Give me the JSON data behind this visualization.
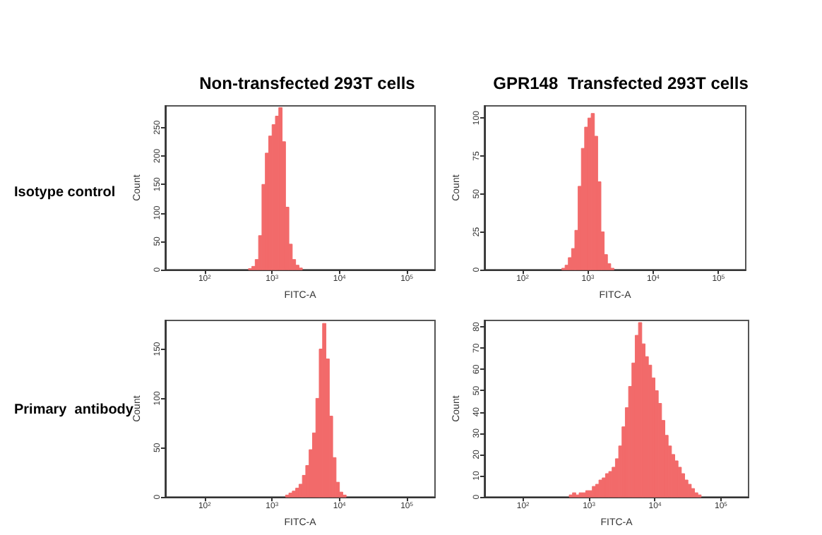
{
  "chart_data": [
    {
      "type": "histogram",
      "title": "Non-transfected 293T cells",
      "annotations": [
        "Isotype control"
      ],
      "xlabel": "FITC-A",
      "ylabel": "Count",
      "log": "x",
      "color": "#f26a6a",
      "xlim": [
        26,
        262144
      ],
      "xticks": [
        {
          "value": 100,
          "label": "10$^{2}$"
        },
        {
          "value": 1000,
          "label": "10$^{3}$"
        },
        {
          "value": 10000,
          "label": "10$^{4}$"
        },
        {
          "value": 100000,
          "label": "10$^{5}$"
        }
      ],
      "ylim": [
        0,
        288
      ],
      "yticks": [
        0,
        50,
        100,
        150,
        200,
        250
      ],
      "bins": [
        447,
        501,
        562,
        631,
        708,
        794,
        891,
        1000,
        1122,
        1259,
        1413,
        1585,
        1778,
        1995,
        2239,
        2512,
        2818
      ],
      "values": [
        2,
        6,
        18,
        60,
        150,
        205,
        235,
        255,
        270,
        285,
        225,
        110,
        45,
        18,
        8,
        3
      ]
    },
    {
      "type": "histogram",
      "title": "GPR148  Transfected 293T cells",
      "xlabel": "FITC-A",
      "ylabel": "Count",
      "log": "x",
      "color": "#f26a6a",
      "xlim": [
        26,
        262144
      ],
      "xticks": [
        {
          "value": 100,
          "label": "10$^{2}$"
        },
        {
          "value": 1000,
          "label": "10$^{3}$"
        },
        {
          "value": 10000,
          "label": "10$^{4}$"
        },
        {
          "value": 100000,
          "label": "10$^{5}$"
        }
      ],
      "ylim": [
        0,
        108
      ],
      "yticks": [
        0,
        25,
        50,
        75,
        100
      ],
      "bins": [
        398,
        447,
        501,
        562,
        631,
        708,
        794,
        891,
        1000,
        1122,
        1259,
        1413,
        1585,
        1778,
        1995,
        2239,
        2512
      ],
      "values": [
        1,
        3,
        8,
        14,
        26,
        55,
        80,
        94,
        100,
        103,
        88,
        58,
        25,
        10,
        4,
        1
      ]
    },
    {
      "type": "histogram",
      "annotations": [
        "Primary  antibody"
      ],
      "xlabel": "FITC-A",
      "ylabel": "Count",
      "log": "x",
      "color": "#f26a6a",
      "xlim": [
        26,
        262144
      ],
      "xticks": [
        {
          "value": 100,
          "label": "10$^{2}$"
        },
        {
          "value": 1000,
          "label": "10$^{3}$"
        },
        {
          "value": 10000,
          "label": "10$^{4}$"
        },
        {
          "value": 100000,
          "label": "10$^{5}$"
        }
      ],
      "ylim": [
        0,
        179
      ],
      "yticks": [
        0,
        50,
        100,
        150
      ],
      "bins": [
        1585,
        1778,
        1995,
        2239,
        2512,
        2818,
        3162,
        3548,
        3981,
        4467,
        5012,
        5623,
        6310,
        7079,
        7943,
        8913,
        10000,
        11220,
        12589
      ],
      "values": [
        2,
        4,
        6,
        9,
        13,
        22,
        32,
        48,
        65,
        100,
        150,
        176,
        140,
        82,
        40,
        15,
        5,
        2
      ]
    },
    {
      "type": "histogram",
      "xlabel": "FITC-A",
      "ylabel": "Count",
      "log": "x",
      "color": "#f26a6a",
      "xlim": [
        26,
        262144
      ],
      "xticks": [
        {
          "value": 100,
          "label": "10$^{2}$"
        },
        {
          "value": 1000,
          "label": "10$^{3}$"
        },
        {
          "value": 10000,
          "label": "10$^{4}$"
        },
        {
          "value": 100000,
          "label": "10$^{5}$"
        }
      ],
      "ylim": [
        0,
        83
      ],
      "yticks": [
        0,
        10,
        20,
        30,
        40,
        50,
        60,
        70,
        80
      ],
      "bins": [
        501,
        562,
        631,
        708,
        794,
        891,
        1000,
        1122,
        1259,
        1413,
        1585,
        1778,
        1995,
        2239,
        2512,
        2818,
        3162,
        3548,
        3981,
        4467,
        5012,
        5623,
        6310,
        7079,
        7943,
        8913,
        10000,
        11220,
        12589,
        14125,
        15849,
        17783,
        19953,
        22387,
        25119,
        28184,
        31623,
        35481,
        39811,
        44668,
        50119
      ],
      "values": [
        1,
        2,
        1,
        2,
        2,
        3,
        3,
        5,
        6,
        8,
        9,
        11,
        12,
        14,
        18,
        24,
        33,
        42,
        52,
        63,
        76,
        82,
        72,
        66,
        62,
        56,
        50,
        44,
        36,
        29,
        24,
        20,
        17,
        14,
        11,
        8,
        6,
        4,
        2,
        1
      ]
    }
  ]
}
